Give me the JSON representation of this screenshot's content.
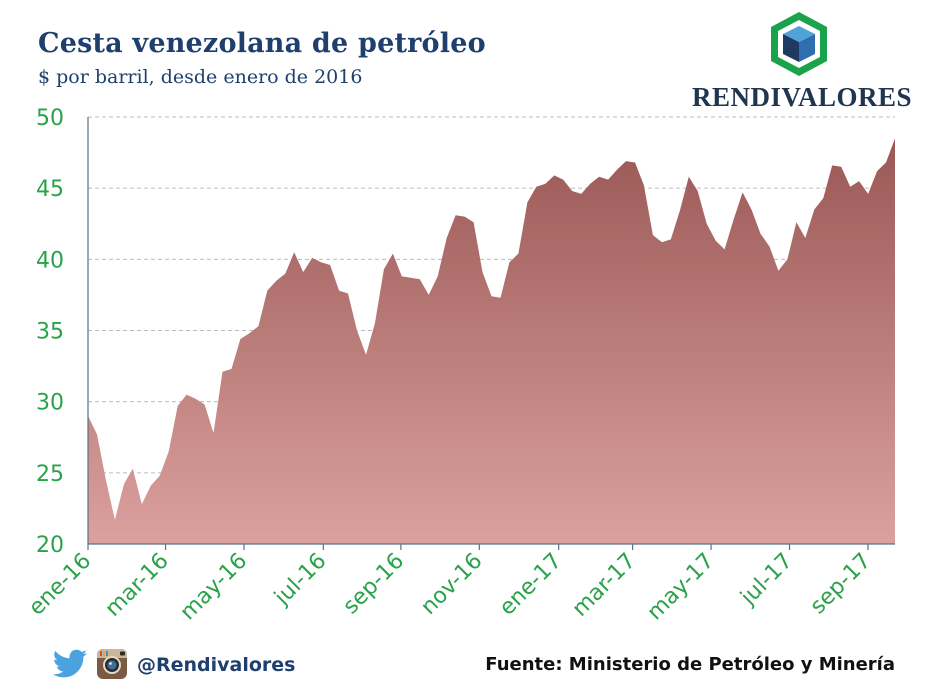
{
  "header": {
    "title": "Cesta venezolana de petróleo",
    "subtitle": "$ por barril, desde enero de 2016"
  },
  "logo": {
    "text": "RENDIVALORES",
    "icon": "cube-hexagon-logo"
  },
  "footer": {
    "handle": "@Rendivalores",
    "source": "Fuente: Ministerio de Petróleo y Minería",
    "icons": [
      "twitter-icon",
      "instagram-icon"
    ]
  },
  "colors": {
    "area_top": "#9a5855",
    "area_bottom": "#dba19e",
    "tick_text": "#2aa24a",
    "title": "#1f3f6e",
    "grid": "#b8bcc4"
  },
  "chart_data": {
    "type": "area",
    "title": "Cesta venezolana de petróleo",
    "subtitle": "$ por barril, desde enero de 2016",
    "xlabel": "",
    "ylabel": "",
    "ylim": [
      20,
      50
    ],
    "yticks": [
      20,
      25,
      30,
      35,
      40,
      45,
      50
    ],
    "grid": true,
    "x_tick_labels": [
      "ene-16",
      "mar-16",
      "may-16",
      "jul-16",
      "sep-16",
      "nov-16",
      "ene-17",
      "mar-17",
      "may-17",
      "jul-17",
      "sep-17"
    ],
    "x_tick_weeks": [
      0,
      8.6,
      17.3,
      26.1,
      34.7,
      43.4,
      52.2,
      60.4,
      69.1,
      77.8,
      86.5
    ],
    "x_range_weeks": [
      0,
      89.5
    ],
    "series": [
      {
        "values": [
          29.0,
          27.7,
          24.5,
          21.7,
          24.2,
          25.3,
          22.8,
          24.1,
          24.8,
          26.5,
          29.7,
          30.5,
          30.2,
          29.8,
          27.8,
          32.1,
          32.3,
          34.4,
          34.8,
          35.3,
          37.8,
          38.5,
          39.0,
          40.5,
          39.1,
          40.1,
          39.8,
          39.6,
          37.8,
          37.6,
          35.0,
          33.3,
          35.5,
          39.3,
          40.4,
          38.8,
          38.7,
          38.6,
          37.5,
          38.8,
          41.5,
          43.1,
          43.0,
          42.6,
          39.1,
          37.4,
          37.3,
          39.8,
          40.4,
          44.0,
          45.1,
          45.3,
          45.9,
          45.6,
          44.8,
          44.6,
          45.3,
          45.8,
          45.6,
          46.3,
          46.9,
          46.8,
          45.2,
          41.7,
          41.2,
          41.4,
          43.4,
          45.8,
          44.8,
          42.5,
          41.3,
          40.7,
          42.8,
          44.7,
          43.5,
          41.8,
          40.9,
          39.2,
          40.0,
          42.6,
          41.5,
          43.5,
          44.3,
          46.6,
          46.5,
          45.1,
          45.5,
          44.6,
          46.2,
          46.8,
          48.5
        ]
      }
    ]
  }
}
